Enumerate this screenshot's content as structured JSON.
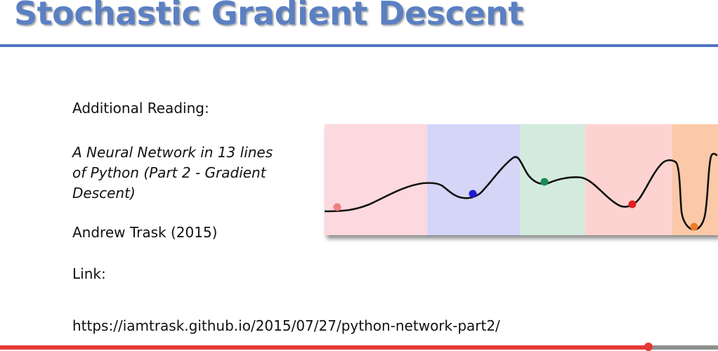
{
  "slide": {
    "title": "Stochastic Gradient Descent",
    "reading_label": "Additional Reading:",
    "paper_title": "A Neural Network in 13 lines\nof Python (Part 2 - Gradient\nDescent)",
    "author": "Andrew Trask (2015)",
    "link_label": "Link:",
    "link_url": "https://iamtrask.github.io/2015/07/27/python-network-part2/"
  },
  "figure": {
    "band_colors": [
      "#fcd9de",
      "#d5d5f8",
      "#d3ebde",
      "#fcd3d0",
      "#fbc9a8"
    ],
    "curve_color": "#111111",
    "ball_colors": [
      "#f08080",
      "#1a1ad6",
      "#1a8a52",
      "#e0201e",
      "#f07a2a"
    ]
  },
  "player": {
    "progress": 0.903,
    "accent_color": "#e53935"
  }
}
